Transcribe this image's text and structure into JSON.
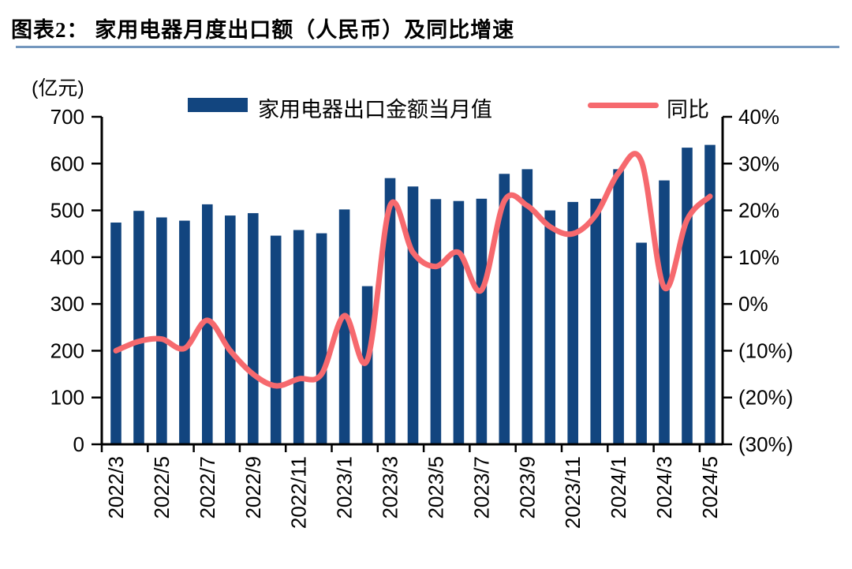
{
  "header": {
    "title": "图表2：  家用电器月度出口额（人民币）及同比增速",
    "divider_color": "#7497BE"
  },
  "chart_data": {
    "type": "bar",
    "subtype": "bar-line-combo",
    "title": "家用电器月度出口额（人民币）及同比增速",
    "left_axis": {
      "unit_label": "(亿元)",
      "min": 0,
      "max": 700,
      "step": 100,
      "tick_labels": [
        "700",
        "600",
        "500",
        "400",
        "300",
        "200",
        "100",
        "0"
      ]
    },
    "right_axis": {
      "min": -30,
      "max": 40,
      "step": 10,
      "tick_labels": [
        "40%",
        "30%",
        "20%",
        "10%",
        "0%",
        "(10%)",
        "(20%)",
        "(30%)"
      ]
    },
    "categories": [
      "2022/3",
      "2022/4",
      "2022/5",
      "2022/6",
      "2022/7",
      "2022/8",
      "2022/9",
      "2022/10",
      "2022/11",
      "2022/12",
      "2023/1",
      "2023/2",
      "2023/3",
      "2023/4",
      "2023/5",
      "2023/6",
      "2023/7",
      "2023/8",
      "2023/9",
      "2023/10",
      "2023/11",
      "2023/12",
      "2024/1",
      "2024/2",
      "2024/3",
      "2024/4",
      "2024/5"
    ],
    "x_tick_labels": [
      "2022/3",
      "2022/5",
      "2022/7",
      "2022/9",
      "2022/11",
      "2023/1",
      "2023/3",
      "2023/5",
      "2023/7",
      "2023/9",
      "2023/11",
      "2024/1",
      "2024/3",
      "2024/5"
    ],
    "series": [
      {
        "name": "家用电器出口金额当月值",
        "kind": "bar",
        "axis": "left",
        "color": "#12457F",
        "values": [
          474,
          499,
          485,
          478,
          513,
          489,
          494,
          446,
          458,
          451,
          502,
          338,
          569,
          551,
          524,
          520,
          525,
          578,
          588,
          500,
          518,
          525,
          588,
          431,
          564,
          634,
          640
        ]
      },
      {
        "name": "同比",
        "kind": "line",
        "axis": "right",
        "color": "#F6696E",
        "values": [
          -10,
          -8,
          -7.5,
          -9.5,
          -3.5,
          -10,
          -15,
          -17.5,
          -16,
          -15,
          -2.5,
          -12,
          21,
          11,
          8,
          11,
          3,
          22,
          21,
          16.5,
          15,
          19,
          28,
          30.5,
          3.5,
          18,
          23
        ]
      }
    ],
    "legend_position": "top",
    "grid": "off",
    "axis_color": "#000000",
    "background": "#ffffff"
  }
}
